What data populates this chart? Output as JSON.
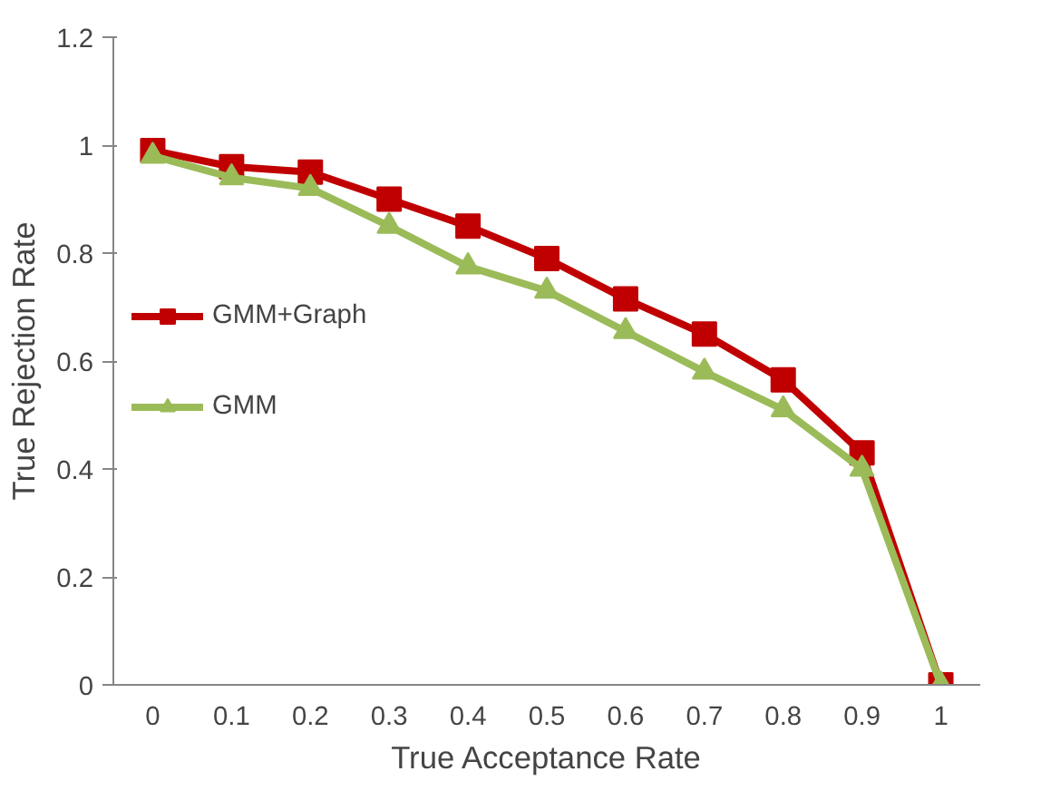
{
  "chart_data": {
    "type": "line",
    "xlabel": "True Acceptance Rate",
    "ylabel": "True Rejection Rate",
    "categories": [
      "0",
      "0.1",
      "0.2",
      "0.3",
      "0.4",
      "0.5",
      "0.6",
      "0.7",
      "0.8",
      "0.9",
      "1"
    ],
    "series": [
      {
        "name": "GMM+Graph",
        "color": "#c00000",
        "marker": "square",
        "values": [
          0.99,
          0.96,
          0.95,
          0.9,
          0.85,
          0.79,
          0.715,
          0.65,
          0.565,
          0.43,
          0
        ]
      },
      {
        "name": "GMM",
        "color": "#9bbb59",
        "marker": "triangle",
        "values": [
          0.98,
          0.94,
          0.92,
          0.85,
          0.775,
          0.73,
          0.655,
          0.58,
          0.51,
          0.4,
          0
        ]
      }
    ],
    "ylim": [
      0,
      1.2
    ],
    "yticks": [
      0,
      0.2,
      0.4,
      0.6,
      0.8,
      1,
      1.2
    ],
    "grid": false,
    "legend": "center left",
    "line_style": "solid"
  }
}
